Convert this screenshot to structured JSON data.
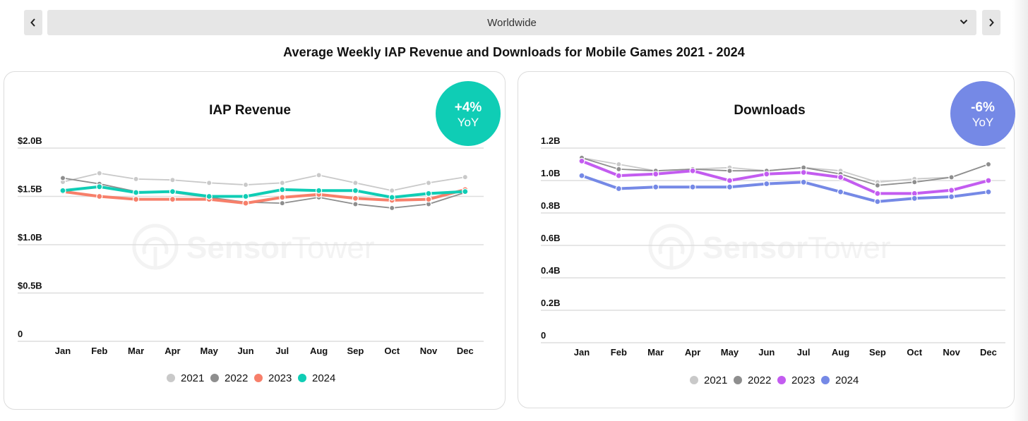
{
  "header": {
    "prev_icon": "chevron-left-icon",
    "next_icon": "chevron-right-icon",
    "region_select": {
      "value": "Worldwide",
      "icon": "chevron-down-icon"
    }
  },
  "page_title": "Average Weekly IAP Revenue and Downloads  for Mobile Games  2021 - 2024",
  "watermark": {
    "bold": "Sensor",
    "light": "Tower"
  },
  "badges": {
    "revenue": {
      "value": "+4%",
      "label": "YoY",
      "color": "#0fcdb5"
    },
    "downloads": {
      "value": "-6%",
      "label": "YoY",
      "color": "#7589e6"
    }
  },
  "chart_data": [
    {
      "type": "line",
      "title": "IAP Revenue",
      "xlabel": "",
      "ylabel": "",
      "categories": [
        "Jan",
        "Feb",
        "Mar",
        "Apr",
        "May",
        "Jun",
        "Jul",
        "Aug",
        "Sep",
        "Oct",
        "Nov",
        "Dec"
      ],
      "yticks": [
        0,
        0.5,
        1.0,
        1.5,
        2.0
      ],
      "ytick_labels": [
        "0",
        "$0.5B",
        "$1.0B",
        "$1.5B",
        "$2.0B"
      ],
      "ylim": [
        0,
        2.0
      ],
      "unit": "USD billions",
      "grid": true,
      "legend_position": "bottom-center",
      "series": [
        {
          "name": "2021",
          "color": "#c9c9c9",
          "width": "thin",
          "values": [
            1.65,
            1.74,
            1.68,
            1.67,
            1.64,
            1.62,
            1.64,
            1.72,
            1.64,
            1.56,
            1.64,
            1.7
          ]
        },
        {
          "name": "2022",
          "color": "#8e8e8e",
          "width": "thin",
          "values": [
            1.69,
            1.63,
            1.55,
            1.54,
            1.49,
            1.44,
            1.43,
            1.49,
            1.42,
            1.38,
            1.42,
            1.54
          ]
        },
        {
          "name": "2023",
          "color": "#f77f6a",
          "width": "thick",
          "values": [
            1.55,
            1.5,
            1.47,
            1.47,
            1.47,
            1.43,
            1.49,
            1.52,
            1.48,
            1.46,
            1.47,
            1.57
          ]
        },
        {
          "name": "2024",
          "color": "#0fcdb5",
          "width": "thick",
          "values": [
            1.56,
            1.6,
            1.54,
            1.55,
            1.5,
            1.5,
            1.57,
            1.56,
            1.56,
            1.49,
            1.53,
            1.55
          ]
        }
      ]
    },
    {
      "type": "line",
      "title": "Downloads",
      "xlabel": "",
      "ylabel": "",
      "categories": [
        "Jan",
        "Feb",
        "Mar",
        "Apr",
        "May",
        "Jun",
        "Jul",
        "Aug",
        "Sep",
        "Oct",
        "Nov",
        "Dec"
      ],
      "yticks": [
        0,
        0.2,
        0.4,
        0.6,
        0.8,
        1.0,
        1.2
      ],
      "ytick_labels": [
        "0",
        "0.2B",
        "0.4B",
        "0.6B",
        "0.8B",
        "1.0B",
        "1.2B"
      ],
      "ylim": [
        0,
        1.2
      ],
      "unit": "billions",
      "grid": true,
      "legend_position": "bottom-center",
      "series": [
        {
          "name": "2021",
          "color": "#c9c9c9",
          "width": "thin",
          "values": [
            1.14,
            1.1,
            1.06,
            1.07,
            1.08,
            1.06,
            1.08,
            1.06,
            0.99,
            1.01,
            1.02,
            1.1
          ]
        },
        {
          "name": "2022",
          "color": "#8e8e8e",
          "width": "thin",
          "values": [
            1.14,
            1.07,
            1.06,
            1.07,
            1.06,
            1.06,
            1.08,
            1.04,
            0.97,
            0.99,
            1.02,
            1.1
          ]
        },
        {
          "name": "2023",
          "color": "#c35cf0",
          "width": "thick",
          "values": [
            1.12,
            1.03,
            1.04,
            1.06,
            1.0,
            1.04,
            1.05,
            1.02,
            0.92,
            0.92,
            0.94,
            1.0
          ]
        },
        {
          "name": "2024",
          "color": "#7589e6",
          "width": "thick",
          "values": [
            1.03,
            0.95,
            0.96,
            0.96,
            0.96,
            0.98,
            0.99,
            0.93,
            0.87,
            0.89,
            0.9,
            0.93
          ]
        }
      ]
    }
  ]
}
